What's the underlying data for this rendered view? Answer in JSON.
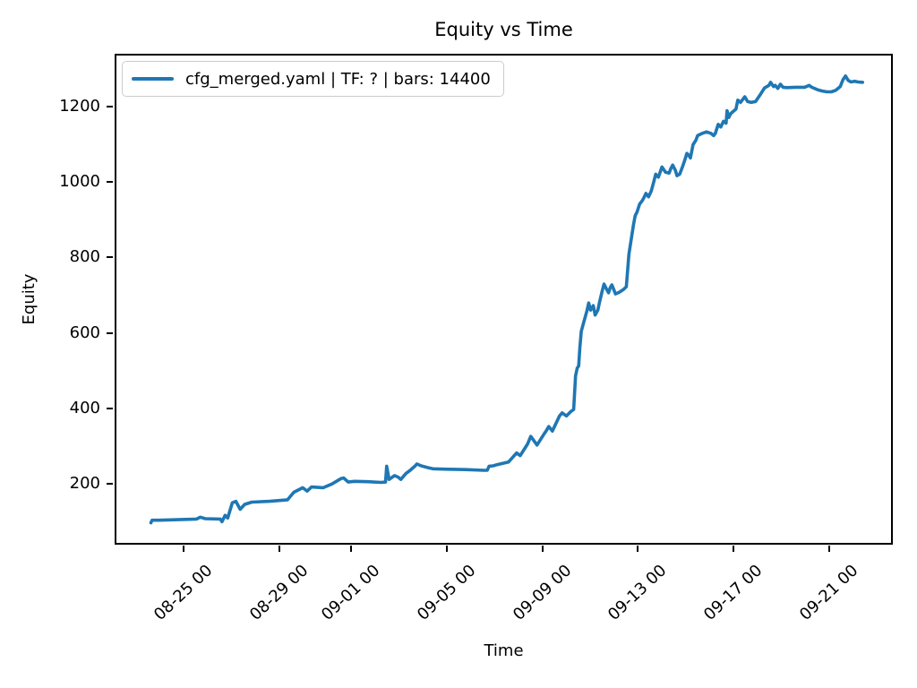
{
  "chart_data": {
    "type": "line",
    "title": "Equity vs Time",
    "xlabel": "Time",
    "ylabel": "Equity",
    "grid": false,
    "legend_position": "upper left",
    "x_unit": "days relative to 08-25 00",
    "xlim": [
      -2.79,
      29.57
    ],
    "ylim": [
      44,
      1334
    ],
    "yticks": [
      200,
      400,
      600,
      800,
      1000,
      1200
    ],
    "xticks": [
      {
        "t": 0,
        "label": "08-25 00"
      },
      {
        "t": 4,
        "label": "08-29 00"
      },
      {
        "t": 7,
        "label": "09-01 00"
      },
      {
        "t": 11,
        "label": "09-05 00"
      },
      {
        "t": 15,
        "label": "09-09 00"
      },
      {
        "t": 19,
        "label": "09-13 00"
      },
      {
        "t": 23,
        "label": "09-17 00"
      },
      {
        "t": 27,
        "label": "09-21 00"
      }
    ],
    "series": [
      {
        "name": "cfg_merged.yaml | TF: ? | bars: 14400",
        "color": "#1f77b4",
        "points": [
          [
            -1.35,
            97
          ],
          [
            -1.3,
            104
          ],
          [
            -1.0,
            104
          ],
          [
            0.56,
            107
          ],
          [
            0.71,
            112
          ],
          [
            0.93,
            108
          ],
          [
            1.55,
            107
          ],
          [
            1.62,
            100
          ],
          [
            1.75,
            117
          ],
          [
            1.86,
            110
          ],
          [
            2.05,
            150
          ],
          [
            2.2,
            154
          ],
          [
            2.38,
            133
          ],
          [
            2.57,
            146
          ],
          [
            2.87,
            152
          ],
          [
            3.61,
            154
          ],
          [
            4.36,
            158
          ],
          [
            4.62,
            178
          ],
          [
            4.84,
            185
          ],
          [
            4.99,
            190
          ],
          [
            5.18,
            181
          ],
          [
            5.36,
            192
          ],
          [
            5.85,
            190
          ],
          [
            6.22,
            200
          ],
          [
            6.59,
            214
          ],
          [
            6.7,
            216
          ],
          [
            6.89,
            205
          ],
          [
            7.15,
            207
          ],
          [
            7.71,
            206
          ],
          [
            8.27,
            204
          ],
          [
            8.45,
            205
          ],
          [
            8.5,
            247
          ],
          [
            8.6,
            212
          ],
          [
            8.83,
            222
          ],
          [
            8.98,
            218
          ],
          [
            9.09,
            212
          ],
          [
            9.31,
            228
          ],
          [
            9.46,
            235
          ],
          [
            9.68,
            247
          ],
          [
            9.76,
            253
          ],
          [
            9.94,
            248
          ],
          [
            10.24,
            243
          ],
          [
            10.43,
            240
          ],
          [
            11.06,
            239
          ],
          [
            11.81,
            238
          ],
          [
            12.55,
            236
          ],
          [
            12.7,
            236
          ],
          [
            12.78,
            247
          ],
          [
            12.95,
            248
          ],
          [
            13.11,
            251
          ],
          [
            13.59,
            258
          ],
          [
            13.93,
            282
          ],
          [
            14.08,
            275
          ],
          [
            14.38,
            305
          ],
          [
            14.52,
            326
          ],
          [
            14.78,
            303
          ],
          [
            15.05,
            330
          ],
          [
            15.16,
            340
          ],
          [
            15.27,
            352
          ],
          [
            15.42,
            340
          ],
          [
            15.72,
            380
          ],
          [
            15.83,
            388
          ],
          [
            16.01,
            380
          ],
          [
            16.2,
            392
          ],
          [
            16.31,
            397
          ],
          [
            16.39,
            486
          ],
          [
            16.46,
            507
          ],
          [
            16.52,
            512
          ],
          [
            16.57,
            560
          ],
          [
            16.63,
            604
          ],
          [
            16.72,
            625
          ],
          [
            16.87,
            659
          ],
          [
            16.94,
            679
          ],
          [
            17.02,
            660
          ],
          [
            17.13,
            672
          ],
          [
            17.21,
            647
          ],
          [
            17.32,
            660
          ],
          [
            17.39,
            680
          ],
          [
            17.5,
            710
          ],
          [
            17.58,
            729
          ],
          [
            17.69,
            715
          ],
          [
            17.77,
            706
          ],
          [
            17.84,
            720
          ],
          [
            17.91,
            727
          ],
          [
            18.06,
            703
          ],
          [
            18.21,
            707
          ],
          [
            18.4,
            715
          ],
          [
            18.51,
            722
          ],
          [
            18.62,
            808
          ],
          [
            18.81,
            886
          ],
          [
            18.88,
            910
          ],
          [
            18.96,
            920
          ],
          [
            19.07,
            941
          ],
          [
            19.18,
            950
          ],
          [
            19.25,
            958
          ],
          [
            19.33,
            969
          ],
          [
            19.44,
            960
          ],
          [
            19.55,
            975
          ],
          [
            19.66,
            1000
          ],
          [
            19.74,
            1020
          ],
          [
            19.85,
            1012
          ],
          [
            20.0,
            1039
          ],
          [
            20.15,
            1025
          ],
          [
            20.3,
            1023
          ],
          [
            20.37,
            1035
          ],
          [
            20.45,
            1044
          ],
          [
            20.56,
            1030
          ],
          [
            20.63,
            1016
          ],
          [
            20.74,
            1020
          ],
          [
            20.86,
            1040
          ],
          [
            20.97,
            1060
          ],
          [
            21.04,
            1075
          ],
          [
            21.12,
            1070
          ],
          [
            21.19,
            1063
          ],
          [
            21.3,
            1098
          ],
          [
            21.42,
            1110
          ],
          [
            21.49,
            1122
          ],
          [
            21.68,
            1128
          ],
          [
            21.86,
            1132
          ],
          [
            22.05,
            1128
          ],
          [
            22.16,
            1122
          ],
          [
            22.23,
            1128
          ],
          [
            22.35,
            1152
          ],
          [
            22.46,
            1145
          ],
          [
            22.57,
            1160
          ],
          [
            22.68,
            1155
          ],
          [
            22.72,
            1188
          ],
          [
            22.79,
            1170
          ],
          [
            22.87,
            1180
          ],
          [
            22.98,
            1186
          ],
          [
            23.09,
            1192
          ],
          [
            23.17,
            1216
          ],
          [
            23.28,
            1210
          ],
          [
            23.46,
            1225
          ],
          [
            23.58,
            1212
          ],
          [
            23.72,
            1210
          ],
          [
            23.91,
            1212
          ],
          [
            24.1,
            1230
          ],
          [
            24.28,
            1248
          ],
          [
            24.36,
            1251
          ],
          [
            24.47,
            1255
          ],
          [
            24.54,
            1263
          ],
          [
            24.66,
            1252
          ],
          [
            24.73,
            1255
          ],
          [
            24.84,
            1247
          ],
          [
            24.95,
            1258
          ],
          [
            25.06,
            1250
          ],
          [
            25.21,
            1249
          ],
          [
            25.59,
            1250
          ],
          [
            25.96,
            1250
          ],
          [
            26.15,
            1255
          ],
          [
            26.26,
            1250
          ],
          [
            26.52,
            1243
          ],
          [
            26.7,
            1240
          ],
          [
            26.89,
            1238
          ],
          [
            27.08,
            1238
          ],
          [
            27.26,
            1242
          ],
          [
            27.45,
            1252
          ],
          [
            27.56,
            1270
          ],
          [
            27.67,
            1280
          ],
          [
            27.78,
            1268
          ],
          [
            27.9,
            1264
          ],
          [
            28.04,
            1266
          ],
          [
            28.19,
            1264
          ],
          [
            28.38,
            1263
          ]
        ]
      }
    ]
  }
}
